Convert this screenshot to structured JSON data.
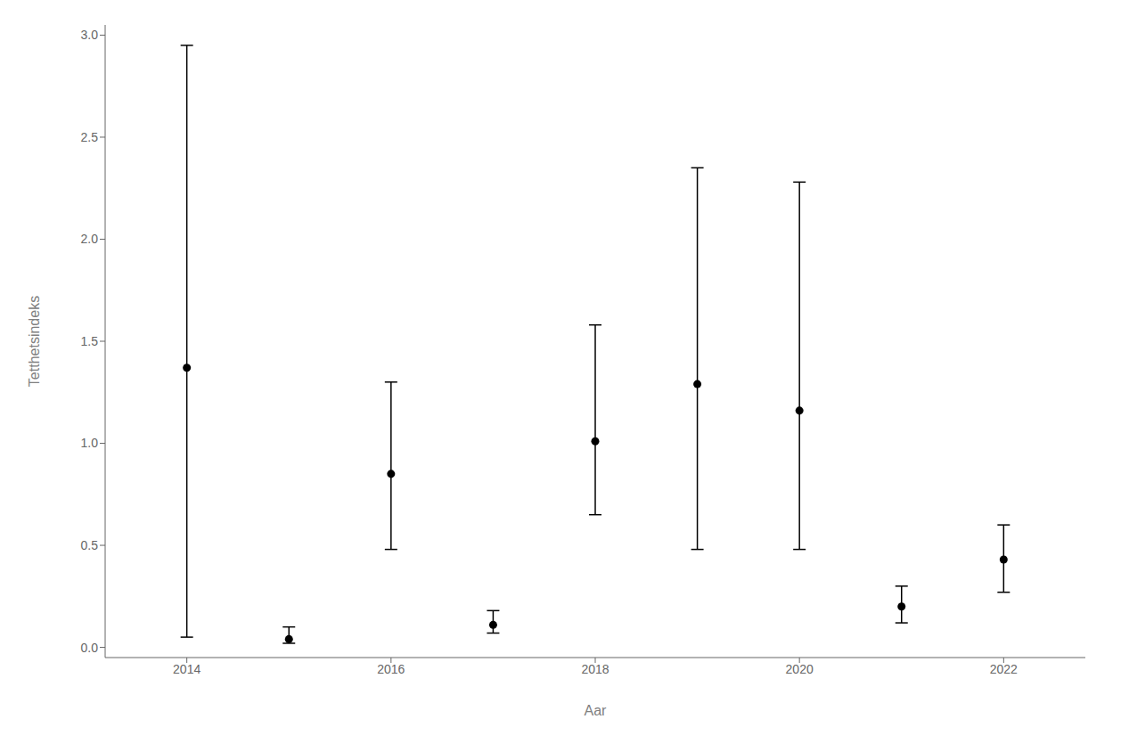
{
  "chart_data": {
    "type": "scatter",
    "x": [
      2014,
      2015,
      2016,
      2017,
      2018,
      2019,
      2020,
      2021,
      2022
    ],
    "values": [
      1.37,
      0.04,
      0.85,
      0.11,
      1.01,
      1.29,
      1.16,
      0.2,
      0.43
    ],
    "ci_low": [
      0.05,
      0.02,
      0.48,
      0.07,
      0.65,
      0.48,
      0.48,
      0.12,
      0.27
    ],
    "ci_high": [
      2.95,
      0.1,
      1.3,
      0.18,
      1.58,
      2.35,
      2.28,
      0.3,
      0.6
    ],
    "xlabel": "Aar",
    "ylabel": "Tetthetsindeks",
    "xlim": [
      2013.2,
      2022.8
    ],
    "ylim": [
      -0.05,
      3.05
    ],
    "xticks": [
      2014,
      2016,
      2018,
      2020,
      2022
    ],
    "yticks": [
      {
        "value": 0.0,
        "label": "0.0"
      },
      0.5,
      {
        "value": 1.0,
        "label": "1.0"
      },
      1.5,
      {
        "value": 2.0,
        "label": "2.0"
      },
      2.5,
      {
        "value": 3.0,
        "label": "3.0"
      }
    ],
    "color": "#000000",
    "marker": "circle",
    "grid": false
  }
}
